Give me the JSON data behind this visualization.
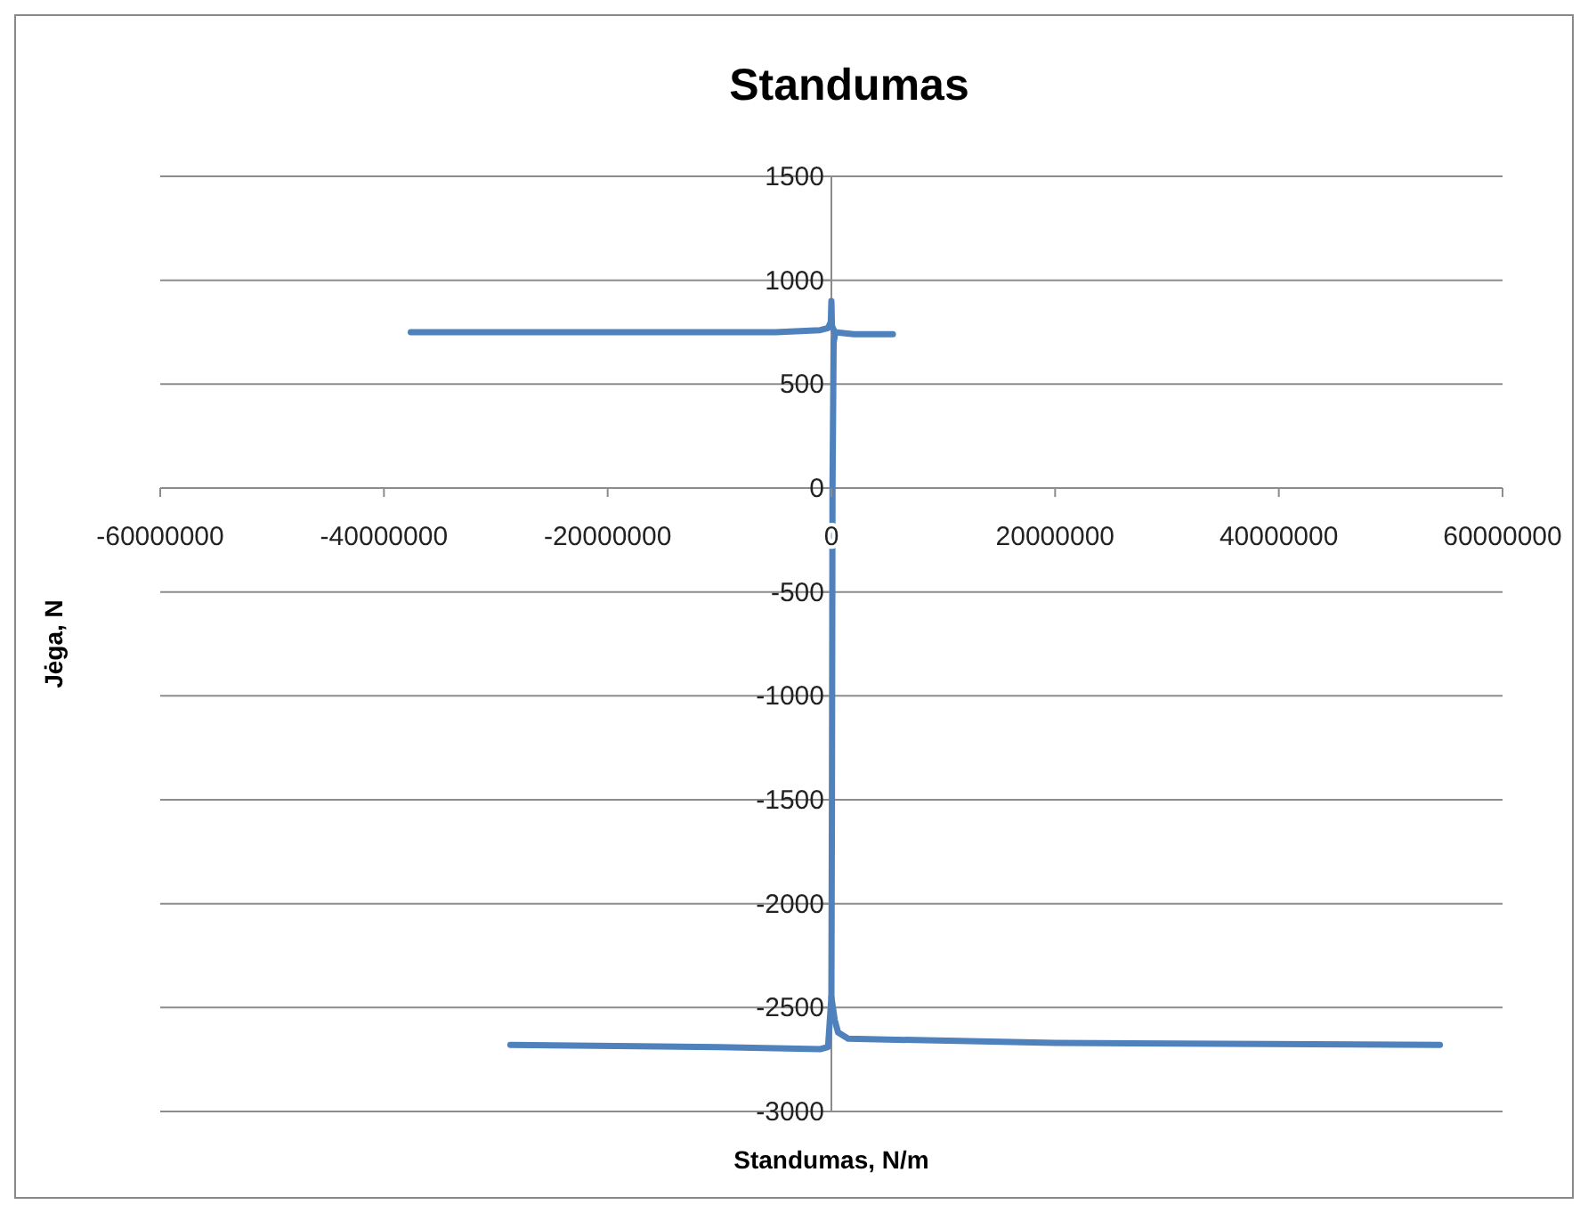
{
  "chart_data": {
    "type": "line",
    "title": "Standumas",
    "xlabel": "Standumas, N/m",
    "ylabel": "Jėga, N",
    "xlim": [
      -60000000,
      60000000
    ],
    "xticks": [
      -60000000,
      -40000000,
      -20000000,
      0,
      20000000,
      40000000,
      60000000
    ],
    "ylim": [
      -3000,
      1500
    ],
    "yticks": [
      -3000,
      -2500,
      -2000,
      -1500,
      -1000,
      -500,
      0,
      500,
      1000,
      1500
    ],
    "grid": "y",
    "marker": "none",
    "line_style": "solid",
    "series": [
      {
        "color": "#4f81bd",
        "x": [
          -37600000,
          -20000000,
          -5000000,
          -1000000,
          -300000,
          -50000,
          0,
          50000,
          300000,
          2000000,
          5500000
        ],
        "values": [
          750,
          750,
          750,
          760,
          770,
          800,
          900,
          780,
          750,
          740,
          740
        ]
      },
      {
        "color": "#4f81bd",
        "x": [
          300000,
          200000,
          100000,
          50000,
          0,
          -300000,
          -1000000,
          -10000000,
          -28700000
        ],
        "values": [
          730,
          700,
          0,
          -1500,
          -2450,
          -2690,
          -2700,
          -2690,
          -2680
        ]
      },
      {
        "color": "#4f81bd",
        "x": [
          0,
          300000,
          600000,
          1500000,
          20000000,
          54400000
        ],
        "values": [
          -2450,
          -2560,
          -2620,
          -2650,
          -2670,
          -2680
        ]
      }
    ]
  }
}
